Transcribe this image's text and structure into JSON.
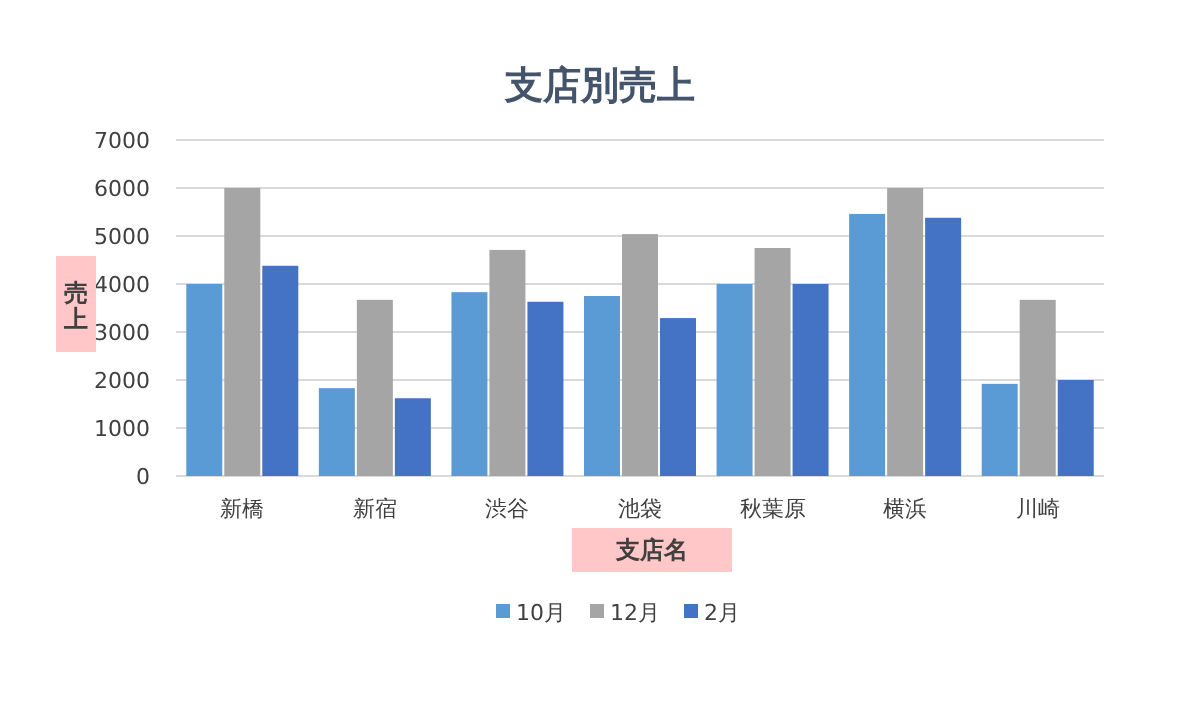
{
  "chart_data": {
    "type": "bar",
    "title": "支店別売上",
    "xlabel": "支店名",
    "ylabel": "売上",
    "categories": [
      "新橋",
      "新宿",
      "渋谷",
      "池袋",
      "秋葉原",
      "横浜",
      "川崎"
    ],
    "series": [
      {
        "name": "10月",
        "color": "#5b9bd5",
        "values": [
          4000,
          1830,
          3830,
          3750,
          4000,
          5460,
          1920
        ]
      },
      {
        "name": "12月",
        "color": "#a5a5a5",
        "values": [
          6000,
          3670,
          4710,
          5040,
          4750,
          6000,
          3670
        ]
      },
      {
        "name": "2月",
        "color": "#4472c4",
        "values": [
          4380,
          1620,
          3630,
          3290,
          4000,
          5380,
          2000
        ]
      }
    ],
    "ylim": [
      0,
      7000
    ],
    "yticks": [
      0,
      1000,
      2000,
      3000,
      4000,
      5000,
      6000,
      7000
    ],
    "grid": "y",
    "legend": "bottom"
  }
}
